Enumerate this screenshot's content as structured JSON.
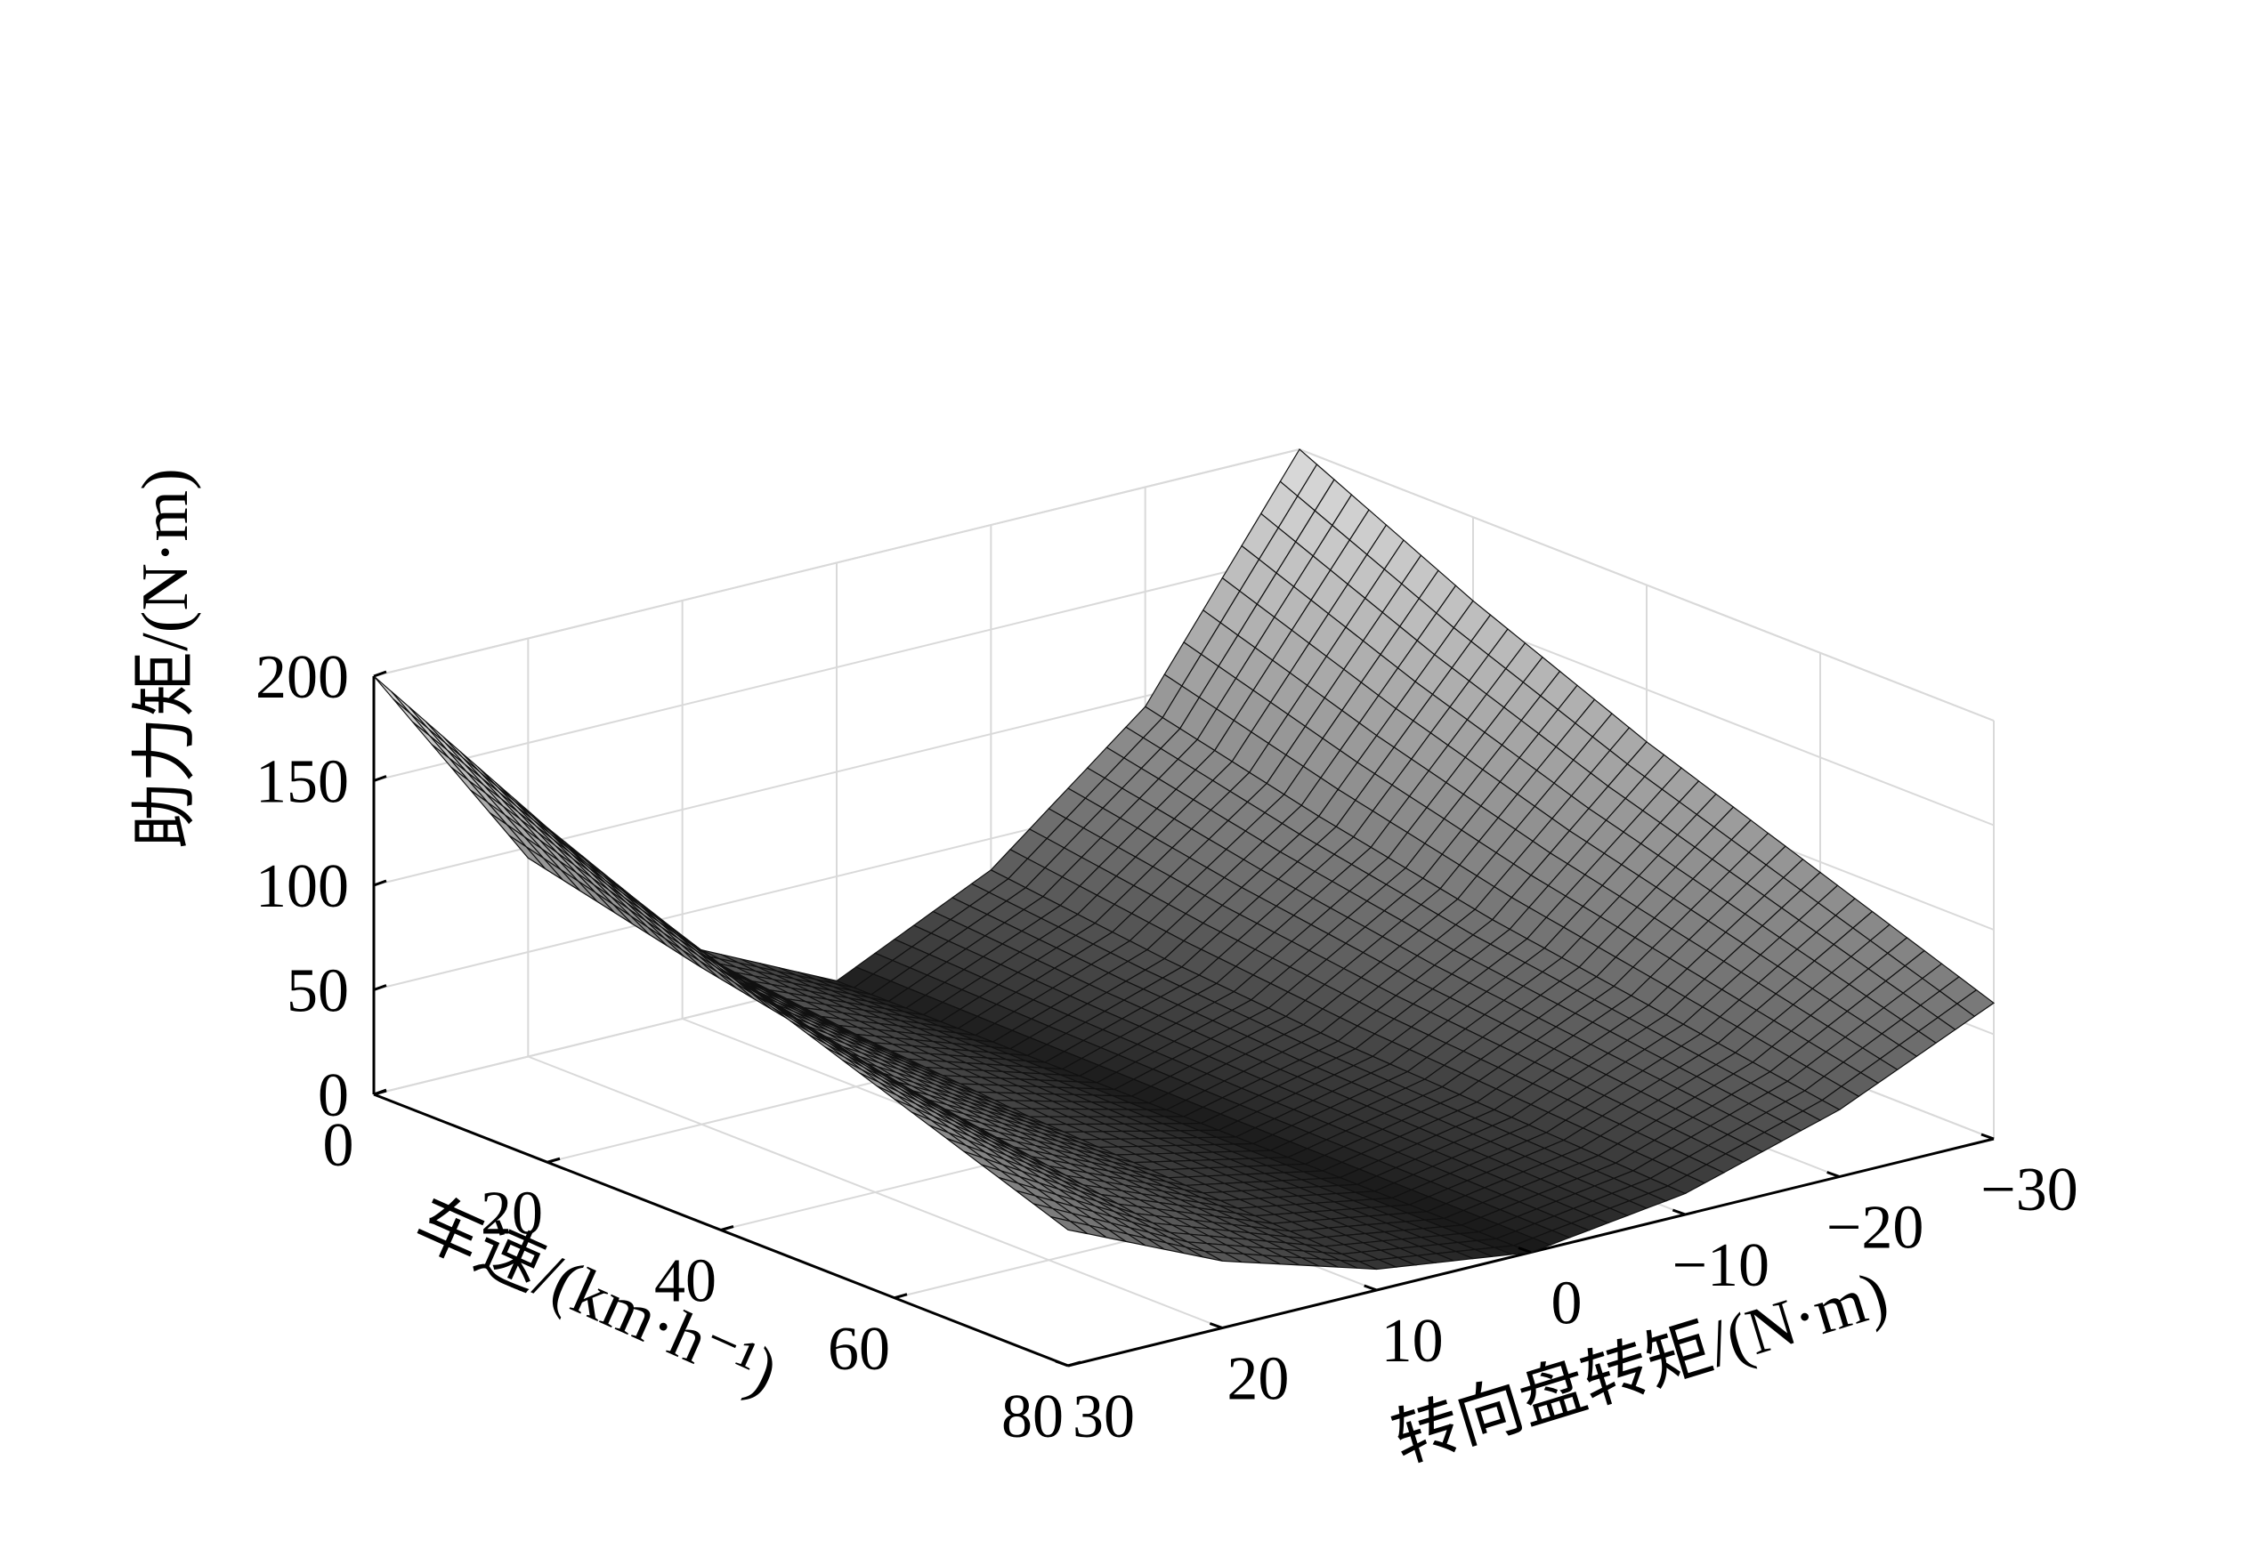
{
  "chart_data": {
    "type": "surface",
    "grid": true,
    "colormap": "gray",
    "x_axis": {
      "label": "车速/(km·h⁻¹)",
      "lim": [
        0,
        80
      ],
      "ticks": [
        0,
        20,
        40,
        60,
        80
      ],
      "tick_labels": [
        "0",
        "20",
        "40",
        "60",
        "80"
      ]
    },
    "y_axis": {
      "label": "转向盘转矩/(N·m)",
      "lim": [
        -30,
        30
      ],
      "ticks": [
        30,
        20,
        10,
        0,
        -10,
        -20,
        -30
      ],
      "tick_labels": [
        "30",
        "20",
        "10",
        "0",
        "−10",
        "−20",
        "−30"
      ]
    },
    "z_axis": {
      "label": "助力矩/(N·m)",
      "lim": [
        0,
        200
      ],
      "ticks": [
        0,
        50,
        100,
        150,
        200
      ],
      "tick_labels": [
        "0",
        "50",
        "100",
        "150",
        "200"
      ]
    },
    "surface_samples": {
      "steering_torque": [
        -30,
        -20,
        -10,
        0,
        10,
        20,
        30
      ],
      "vehicle_speed": [
        0,
        20,
        40,
        60,
        80
      ],
      "assist_torque": [
        [
          200,
          95,
          35,
          0,
          35,
          95,
          200
        ],
        [
          160,
          75,
          25,
          0,
          25,
          75,
          160
        ],
        [
          125,
          58,
          18,
          0,
          18,
          58,
          125
        ],
        [
          95,
          45,
          14,
          0,
          14,
          45,
          95
        ],
        [
          65,
          32,
          10,
          0,
          10,
          32,
          65
        ]
      ]
    }
  }
}
